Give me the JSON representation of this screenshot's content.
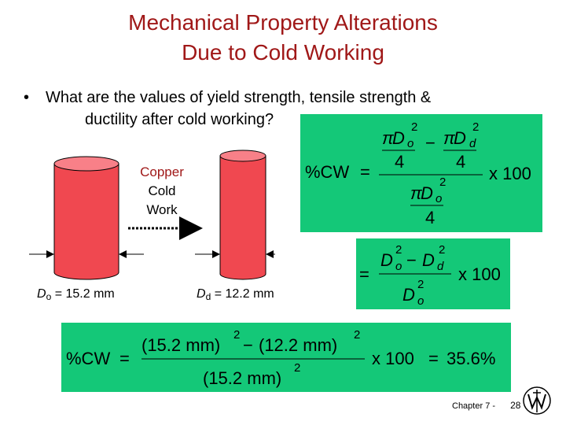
{
  "title": {
    "line1": "Mechanical Property Alterations",
    "line2": "Due to Cold Working"
  },
  "bullet": {
    "symbol": "•",
    "line1": "What are the values of yield strength, tensile strength &",
    "line2": "ductility after cold working?"
  },
  "process": {
    "line1": "Copper",
    "line2": "Cold",
    "line3": "Work"
  },
  "diameters": {
    "initial": {
      "symbol": "D",
      "sub": "o",
      "value": " = 15.2 mm"
    },
    "final": {
      "symbol": "D",
      "sub": "d",
      "value": " = 12.2 mm"
    }
  },
  "formula1": {
    "lhs": "%CW",
    "eq": "=",
    "pi": "π",
    "D": "D",
    "sub_o": "o",
    "sub_d": "d",
    "exp": "2",
    "four": "4",
    "minus": "−",
    "times": "x 100"
  },
  "formula2": {
    "eq": "=",
    "D": "D",
    "sub_o": "o",
    "sub_d": "d",
    "exp": "2",
    "minus": "−",
    "times": "x 100"
  },
  "formula3": {
    "lhs": "%CW",
    "eq": "=",
    "num_a": "(15.2 mm)",
    "minus": "−",
    "num_b": "(12.2 mm)",
    "den": "(15.2 mm)",
    "exp": "2",
    "times": "x 100",
    "eq2": "=",
    "result": "35.6%"
  },
  "colors": {
    "title": "#a01818",
    "green": "#14c878",
    "cylinder": "#f04850",
    "cylinder_top": "#f88088",
    "copper_label": "#a01818"
  },
  "icons": {
    "publisher_logo": "wiley-logo-icon"
  },
  "footer": {
    "chapter": "Chapter 7 -",
    "page": "28"
  }
}
